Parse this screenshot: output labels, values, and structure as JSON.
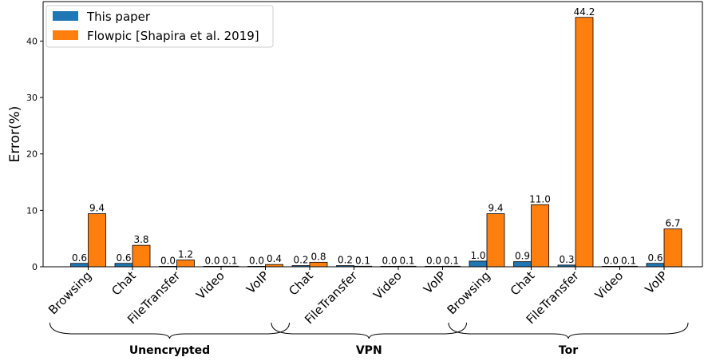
{
  "chart_data": {
    "type": "bar",
    "ylabel": "Error(%)",
    "ylim": [
      0,
      47
    ],
    "yticks": [
      0,
      10,
      20,
      30,
      40
    ],
    "legend_position": "top-left",
    "colors": {
      "This paper": "#1f77b4",
      "Flowpic [Shapira et al. 2019]": "#ff7f0e"
    },
    "categories": [
      "Browsing",
      "Chat",
      "FileTransfer",
      "Video",
      "VoIP",
      "Chat",
      "FileTransfer",
      "Video",
      "VoIP",
      "Browsing",
      "Chat",
      "FileTransfer",
      "Video",
      "VoIP"
    ],
    "groups": [
      {
        "label": "Unencrypted",
        "start": 0,
        "end": 4
      },
      {
        "label": "VPN",
        "start": 5,
        "end": 8
      },
      {
        "label": "Tor",
        "start": 9,
        "end": 13
      }
    ],
    "series": [
      {
        "name": "This paper",
        "values": [
          0.6,
          0.6,
          0.0,
          0.0,
          0.0,
          0.2,
          0.2,
          0.0,
          0.0,
          1.0,
          0.9,
          0.3,
          0.0,
          0.6
        ]
      },
      {
        "name": "Flowpic [Shapira et al. 2019]",
        "values": [
          9.4,
          3.8,
          1.2,
          0.1,
          0.4,
          0.8,
          0.1,
          0.1,
          0.1,
          9.4,
          11.0,
          44.2,
          0.1,
          6.7
        ]
      }
    ]
  }
}
